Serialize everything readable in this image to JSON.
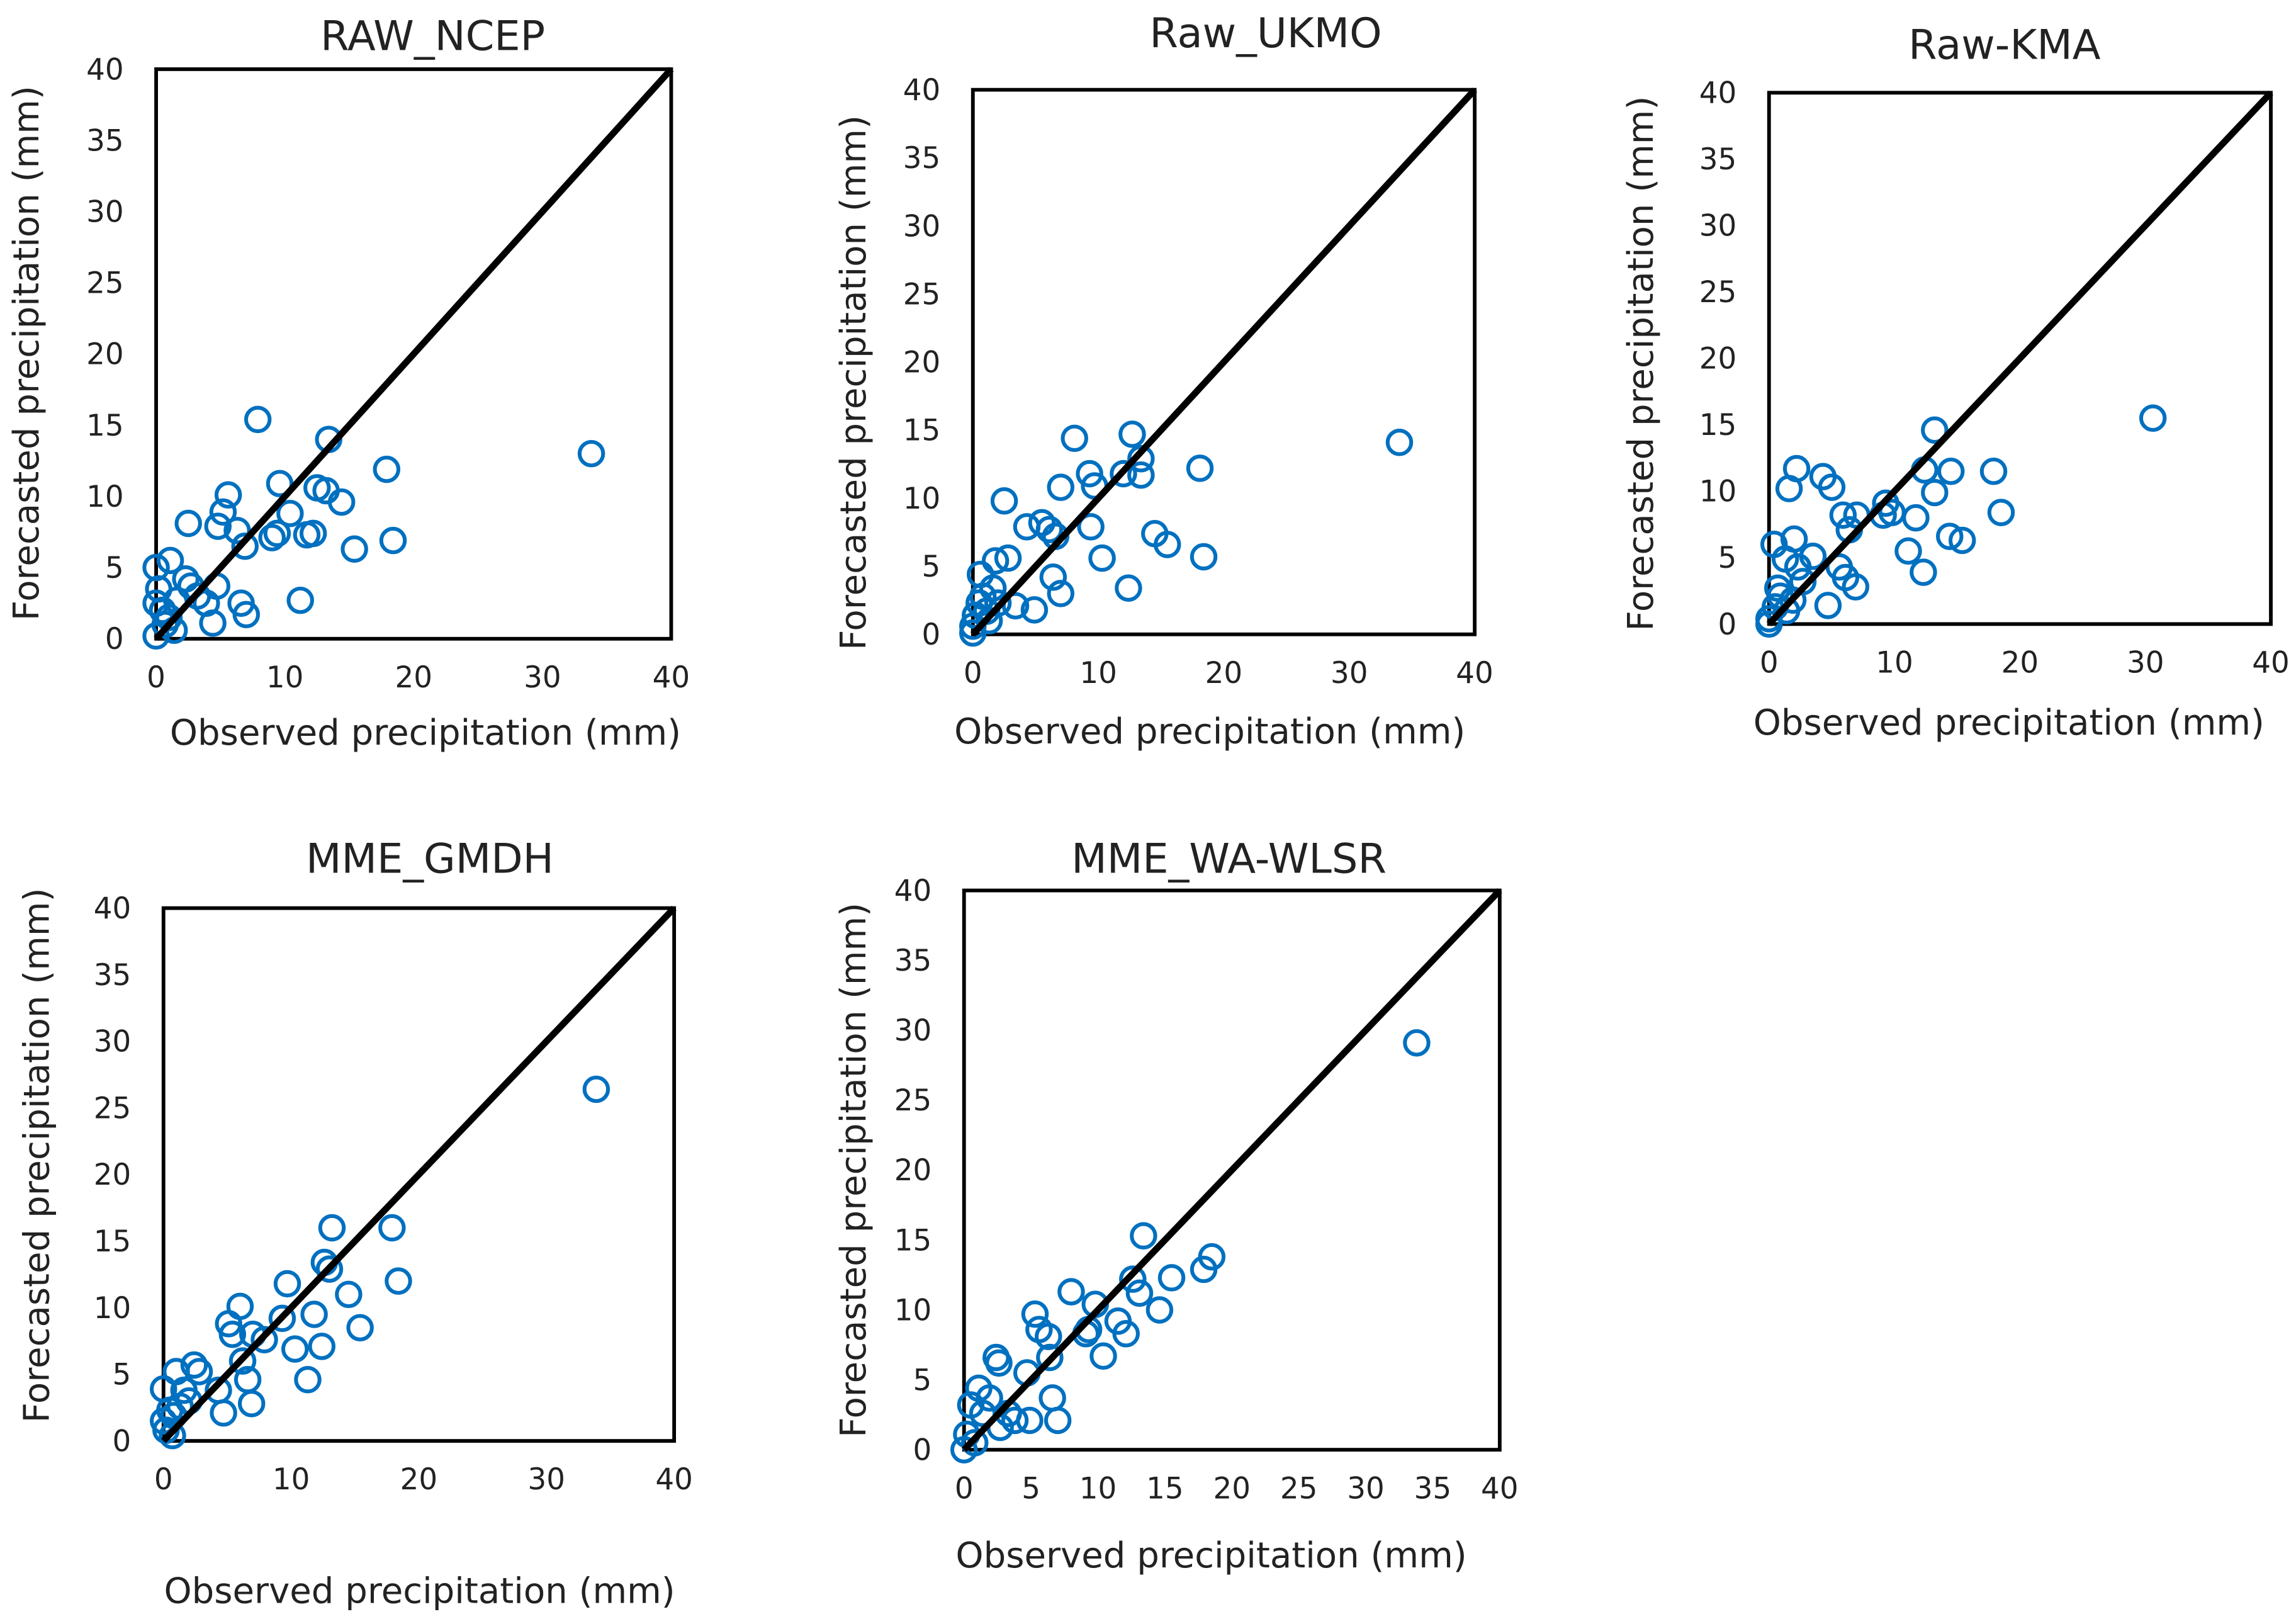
{
  "colors": {
    "marker": "#0070C0",
    "line": "#000000",
    "frame": "#000000"
  },
  "chart_data": [
    {
      "type": "scatter",
      "title": "RAW_NCEP",
      "xlabel": "Observed precipitation (mm)",
      "ylabel": "Forecasted precipitation (mm)",
      "xlim": [
        0,
        40
      ],
      "ylim": [
        0,
        40
      ],
      "xticks": [
        0,
        10,
        20,
        30,
        40
      ],
      "yticks": [
        0,
        5,
        10,
        15,
        20,
        25,
        30,
        35,
        40
      ],
      "reference_line": "1:1",
      "points": [
        [
          7.9,
          15.4
        ],
        [
          13.4,
          14.0
        ],
        [
          33.8,
          13.0
        ],
        [
          17.9,
          11.9
        ],
        [
          9.6,
          10.9
        ],
        [
          5.6,
          10.1
        ],
        [
          12.5,
          10.6
        ],
        [
          13.2,
          10.4
        ],
        [
          14.4,
          9.6
        ],
        [
          10.4,
          8.8
        ],
        [
          2.5,
          8.1
        ],
        [
          5.2,
          8.9
        ],
        [
          4.8,
          7.9
        ],
        [
          6.3,
          7.6
        ],
        [
          9.4,
          7.4
        ],
        [
          9.0,
          7.1
        ],
        [
          6.9,
          6.5
        ],
        [
          12.2,
          7.4
        ],
        [
          11.7,
          7.3
        ],
        [
          15.4,
          6.3
        ],
        [
          18.4,
          6.9
        ],
        [
          1.1,
          5.5
        ],
        [
          4.7,
          3.7
        ],
        [
          11.2,
          2.7
        ],
        [
          6.6,
          2.5
        ],
        [
          7.0,
          1.7
        ],
        [
          4.4,
          1.1
        ],
        [
          2.7,
          3.7
        ],
        [
          2.3,
          4.2
        ],
        [
          0.0,
          5.0
        ],
        [
          0.2,
          3.5
        ],
        [
          0.0,
          2.5
        ],
        [
          0.5,
          2.0
        ],
        [
          0.7,
          1.0
        ],
        [
          0.0,
          0.2
        ],
        [
          1.0,
          1.5
        ],
        [
          1.6,
          2.7
        ],
        [
          3.2,
          3.0
        ],
        [
          3.9,
          2.5
        ],
        [
          1.4,
          0.6
        ]
      ]
    },
    {
      "type": "scatter",
      "title": "Raw_UKMO",
      "xlabel": "Observed precipitation (mm)",
      "ylabel": "Forecasted precipitation (mm)",
      "xlim": [
        0,
        40
      ],
      "ylim": [
        0,
        40
      ],
      "xticks": [
        0,
        10,
        20,
        30,
        40
      ],
      "yticks": [
        0,
        5,
        10,
        15,
        20,
        25,
        30,
        35,
        40
      ],
      "reference_line": "1:1",
      "points": [
        [
          34.0,
          14.1
        ],
        [
          12.7,
          14.7
        ],
        [
          8.1,
          14.4
        ],
        [
          13.4,
          12.9
        ],
        [
          9.3,
          11.8
        ],
        [
          12.0,
          11.8
        ],
        [
          13.4,
          11.7
        ],
        [
          18.1,
          12.2
        ],
        [
          7.0,
          10.8
        ],
        [
          9.7,
          10.9
        ],
        [
          2.5,
          9.8
        ],
        [
          5.5,
          8.2
        ],
        [
          6.1,
          7.7
        ],
        [
          9.4,
          7.9
        ],
        [
          6.6,
          7.2
        ],
        [
          4.3,
          7.9
        ],
        [
          14.5,
          7.4
        ],
        [
          15.5,
          6.6
        ],
        [
          18.4,
          5.7
        ],
        [
          10.3,
          5.6
        ],
        [
          2.8,
          5.6
        ],
        [
          1.8,
          5.4
        ],
        [
          6.4,
          4.2
        ],
        [
          7.0,
          3.0
        ],
        [
          12.4,
          3.4
        ],
        [
          4.9,
          1.8
        ],
        [
          3.4,
          2.1
        ],
        [
          0.6,
          4.4
        ],
        [
          0.0,
          0.6
        ],
        [
          0.2,
          1.4
        ],
        [
          0.5,
          2.3
        ],
        [
          0.8,
          2.8
        ],
        [
          1.1,
          1.7
        ],
        [
          1.3,
          1.0
        ],
        [
          1.6,
          3.4
        ],
        [
          2.0,
          2.3
        ],
        [
          0.0,
          0.1
        ]
      ]
    },
    {
      "type": "scatter",
      "title": "Raw-KMA",
      "xlabel": "Observed precipitation (mm)",
      "ylabel": "Forecasted precipitation (mm)",
      "xlim": [
        0,
        40
      ],
      "ylim": [
        0,
        40
      ],
      "xticks": [
        0,
        10,
        20,
        30,
        40
      ],
      "yticks": [
        0,
        5,
        10,
        15,
        20,
        25,
        30,
        35,
        40
      ],
      "reference_line": "1:1",
      "points": [
        [
          30.6,
          15.5
        ],
        [
          13.2,
          14.6
        ],
        [
          2.2,
          11.7
        ],
        [
          4.3,
          11.1
        ],
        [
          5.0,
          10.3
        ],
        [
          1.6,
          10.2
        ],
        [
          12.4,
          11.6
        ],
        [
          14.5,
          11.5
        ],
        [
          13.2,
          9.9
        ],
        [
          17.9,
          11.5
        ],
        [
          9.3,
          9.1
        ],
        [
          9.1,
          8.2
        ],
        [
          9.8,
          8.4
        ],
        [
          11.7,
          8.0
        ],
        [
          18.5,
          8.4
        ],
        [
          5.9,
          8.2
        ],
        [
          7.0,
          8.2
        ],
        [
          6.4,
          7.1
        ],
        [
          14.4,
          6.6
        ],
        [
          15.4,
          6.3
        ],
        [
          11.1,
          5.5
        ],
        [
          12.3,
          3.9
        ],
        [
          3.5,
          5.1
        ],
        [
          5.6,
          4.3
        ],
        [
          6.1,
          3.5
        ],
        [
          6.9,
          2.8
        ],
        [
          4.7,
          1.4
        ],
        [
          2.0,
          6.4
        ],
        [
          0.4,
          6.0
        ],
        [
          1.3,
          4.9
        ],
        [
          2.3,
          4.3
        ],
        [
          2.7,
          3.2
        ],
        [
          0.0,
          0.4
        ],
        [
          0.5,
          1.3
        ],
        [
          0.9,
          2.1
        ],
        [
          1.4,
          1.0
        ],
        [
          1.9,
          1.8
        ],
        [
          0.0,
          0.0
        ],
        [
          0.7,
          2.7
        ]
      ]
    },
    {
      "type": "scatter",
      "title": "MME_GMDH",
      "xlabel": "Observed precipitation (mm)",
      "ylabel": "Forecasted precipitation (mm)",
      "xlim": [
        0,
        40
      ],
      "ylim": [
        0,
        40
      ],
      "xticks": [
        0,
        10,
        20,
        30,
        40
      ],
      "yticks": [
        0,
        5,
        10,
        15,
        20,
        25,
        30,
        35,
        40
      ],
      "reference_line": "1:1",
      "points": [
        [
          33.9,
          26.4
        ],
        [
          13.2,
          16.0
        ],
        [
          17.9,
          16.0
        ],
        [
          12.6,
          13.4
        ],
        [
          13.0,
          12.9
        ],
        [
          18.4,
          12.0
        ],
        [
          9.7,
          11.8
        ],
        [
          14.5,
          11.0
        ],
        [
          6.0,
          10.1
        ],
        [
          11.8,
          9.5
        ],
        [
          9.3,
          9.2
        ],
        [
          5.1,
          8.8
        ],
        [
          15.4,
          8.5
        ],
        [
          5.4,
          8.0
        ],
        [
          7.9,
          7.6
        ],
        [
          7.0,
          8.0
        ],
        [
          10.3,
          6.9
        ],
        [
          12.4,
          7.1
        ],
        [
          6.2,
          6.0
        ],
        [
          6.6,
          4.6
        ],
        [
          11.3,
          4.6
        ],
        [
          6.9,
          2.8
        ],
        [
          4.7,
          2.1
        ],
        [
          2.4,
          5.7
        ],
        [
          2.8,
          5.2
        ],
        [
          1.0,
          5.2
        ],
        [
          0.0,
          3.9
        ],
        [
          4.3,
          3.8
        ],
        [
          1.6,
          3.8
        ],
        [
          2.0,
          3.0
        ],
        [
          0.5,
          2.3
        ],
        [
          0.0,
          1.5
        ],
        [
          0.8,
          1.9
        ],
        [
          1.3,
          2.6
        ],
        [
          0.2,
          0.8
        ],
        [
          0.7,
          0.4
        ]
      ]
    },
    {
      "type": "scatter",
      "title": "MME_WA-WLSR",
      "xlabel": "Observed precipitation (mm)",
      "ylabel": "Forecasted precipitation (mm)",
      "xlim": [
        0,
        40
      ],
      "ylim": [
        0,
        40
      ],
      "xticks": [
        0,
        5,
        10,
        15,
        20,
        25,
        30,
        35,
        40
      ],
      "yticks": [
        0,
        5,
        10,
        15,
        20,
        25,
        30,
        35,
        40
      ],
      "reference_line": "1:1",
      "points": [
        [
          33.8,
          29.1
        ],
        [
          13.4,
          15.3
        ],
        [
          18.5,
          13.8
        ],
        [
          17.9,
          12.9
        ],
        [
          15.5,
          12.3
        ],
        [
          12.6,
          12.2
        ],
        [
          13.1,
          11.2
        ],
        [
          8.0,
          11.3
        ],
        [
          9.8,
          10.4
        ],
        [
          5.3,
          9.7
        ],
        [
          5.6,
          8.6
        ],
        [
          6.3,
          8.1
        ],
        [
          11.5,
          9.2
        ],
        [
          12.1,
          8.3
        ],
        [
          14.6,
          10.0
        ],
        [
          9.1,
          8.3
        ],
        [
          9.3,
          8.6
        ],
        [
          10.4,
          6.7
        ],
        [
          6.4,
          6.6
        ],
        [
          2.4,
          6.6
        ],
        [
          2.6,
          6.2
        ],
        [
          4.7,
          5.5
        ],
        [
          6.6,
          3.7
        ],
        [
          7.0,
          2.1
        ],
        [
          4.9,
          2.1
        ],
        [
          1.1,
          4.4
        ],
        [
          0.5,
          3.2
        ],
        [
          1.4,
          2.6
        ],
        [
          1.9,
          3.7
        ],
        [
          3.3,
          2.6
        ],
        [
          3.8,
          2.1
        ],
        [
          0.2,
          1.1
        ],
        [
          0.8,
          0.5
        ],
        [
          0.0,
          0.0
        ],
        [
          2.7,
          1.6
        ]
      ]
    }
  ]
}
